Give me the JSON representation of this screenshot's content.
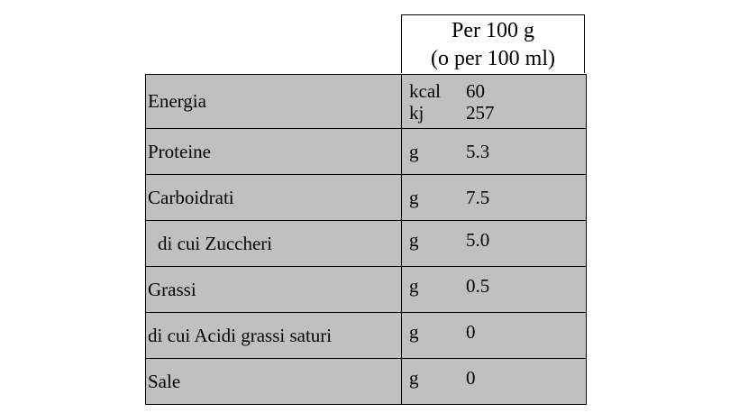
{
  "header": {
    "line1": "Per 100 g",
    "line2": "(o per 100 ml)"
  },
  "rows": [
    {
      "label": "Energia",
      "values": [
        {
          "unit": "kcal",
          "value": "60"
        },
        {
          "unit": "kj",
          "value": "257"
        }
      ]
    },
    {
      "label": "Proteine",
      "values": [
        {
          "unit": "g",
          "value": "5.3"
        }
      ]
    },
    {
      "label": "Carboidrati",
      "values": [
        {
          "unit": "g",
          "value": "7.5"
        }
      ]
    },
    {
      "label": "di cui Zuccheri",
      "values": [
        {
          "unit": "g",
          "value": "5.0"
        }
      ]
    },
    {
      "label": "Grassi",
      "values": [
        {
          "unit": "g",
          "value": "0.5"
        }
      ]
    },
    {
      "label": "di cui Acidi grassi saturi",
      "values": [
        {
          "unit": "g",
          "value": "0"
        }
      ]
    },
    {
      "label": "Sale",
      "values": [
        {
          "unit": "g",
          "value": "0"
        }
      ]
    }
  ]
}
